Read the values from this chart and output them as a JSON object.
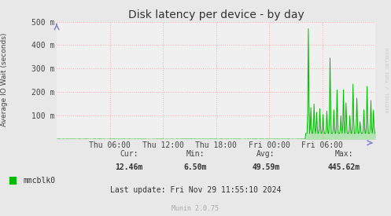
{
  "title": "Disk latency per device - by day",
  "ylabel": "Average IO Wait (seconds)",
  "background_color": "#e8e8e8",
  "plot_bg_color": "#f0f0f0",
  "grid_color": "#ff9999",
  "line_color": "#00bb00",
  "ylim": [
    0,
    500
  ],
  "yticks": [
    100,
    200,
    300,
    400,
    500
  ],
  "ytick_labels": [
    "100 m",
    "200 m",
    "300 m",
    "400 m",
    "500 m"
  ],
  "xtick_labels": [
    "Thu 06:00",
    "Thu 12:00",
    "Thu 18:00",
    "Fri 00:00",
    "Fri 06:00"
  ],
  "xtick_positions": [
    0.1667,
    0.3333,
    0.5,
    0.6667,
    0.8333
  ],
  "legend_label": "mmcblk0",
  "cur": "12.46m",
  "min": "6.50m",
  "avg": "49.59m",
  "max": "445.62m",
  "last_update": "Last update: Fri Nov 29 11:55:10 2024",
  "munin_version": "Munin 2.0.75",
  "rrdtool_label": "RRDTOOL / TOBI OETIKER",
  "title_fontsize": 10,
  "tick_fontsize": 7,
  "stats_fontsize": 7,
  "legend_fontsize": 7
}
